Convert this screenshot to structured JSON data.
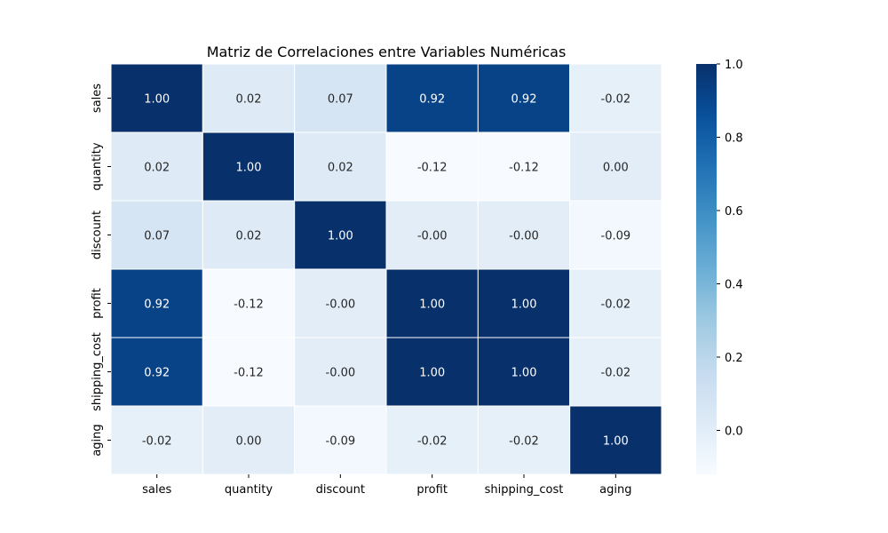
{
  "chart_data": {
    "type": "heatmap",
    "title": "Matriz de Correlaciones entre Variables Numéricas",
    "xlabel": "",
    "ylabel": "",
    "x_categories": [
      "sales",
      "quantity",
      "discount",
      "profit",
      "shipping_cost",
      "aging"
    ],
    "y_categories": [
      "sales",
      "quantity",
      "discount",
      "profit",
      "shipping_cost",
      "aging"
    ],
    "values": [
      [
        1.0,
        0.02,
        0.07,
        0.92,
        0.92,
        -0.02
      ],
      [
        0.02,
        1.0,
        0.02,
        -0.12,
        -0.12,
        0.0
      ],
      [
        0.07,
        0.02,
        1.0,
        -0.0,
        -0.0,
        -0.09
      ],
      [
        0.92,
        -0.12,
        -0.0,
        1.0,
        1.0,
        -0.02
      ],
      [
        0.92,
        -0.12,
        -0.0,
        1.0,
        1.0,
        -0.02
      ],
      [
        -0.02,
        0.0,
        -0.09,
        -0.02,
        -0.02,
        1.0
      ]
    ],
    "annotations": [
      [
        "1.00",
        "0.02",
        "0.07",
        "0.92",
        "0.92",
        "-0.02"
      ],
      [
        "0.02",
        "1.00",
        "0.02",
        "-0.12",
        "-0.12",
        "0.00"
      ],
      [
        "0.07",
        "0.02",
        "1.00",
        "-0.00",
        "-0.00",
        "-0.09"
      ],
      [
        "0.92",
        "-0.12",
        "-0.00",
        "1.00",
        "1.00",
        "-0.02"
      ],
      [
        "0.92",
        "-0.12",
        "-0.00",
        "1.00",
        "1.00",
        "-0.02"
      ],
      [
        "-0.02",
        "0.00",
        "-0.09",
        "-0.02",
        "-0.02",
        "1.00"
      ]
    ],
    "colormap": "Blues",
    "vmin": -0.12,
    "vmax": 1.0,
    "colorbar_ticks": [
      0.0,
      0.2,
      0.4,
      0.6,
      0.8,
      1.0
    ],
    "colorbar_tick_labels": [
      "0.0",
      "0.2",
      "0.4",
      "0.6",
      "0.8",
      "1.0"
    ],
    "cell_border_color": "#ffffff"
  }
}
